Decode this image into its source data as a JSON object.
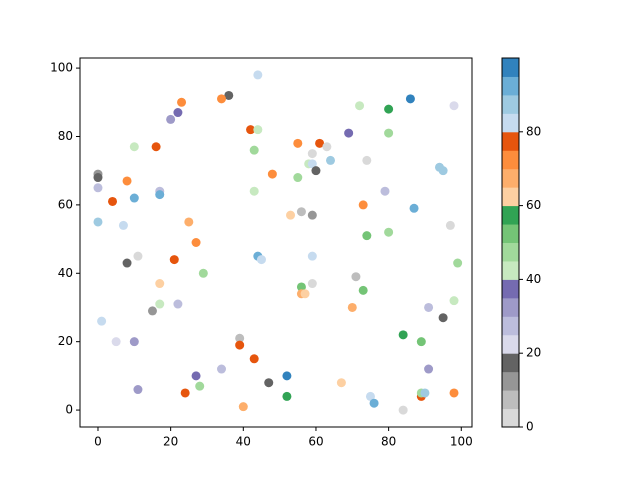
{
  "chart_data": {
    "type": "scatter",
    "x": [
      44,
      36,
      34,
      23,
      22,
      20,
      86,
      98,
      72,
      80,
      42,
      44,
      69,
      80,
      10,
      16,
      43,
      55,
      61,
      63,
      59,
      74,
      64,
      58,
      59,
      60,
      55,
      48,
      8,
      0,
      0,
      0,
      17,
      17,
      43,
      79,
      4,
      73,
      87,
      53,
      56,
      59,
      0,
      7,
      25,
      95,
      94,
      97,
      74,
      80,
      27,
      11,
      10,
      21,
      8,
      44,
      45,
      59,
      99,
      29,
      71,
      17,
      59,
      56,
      73,
      56,
      57,
      98,
      17,
      22,
      15,
      70,
      91,
      1,
      95,
      84,
      39,
      5,
      10,
      39,
      89,
      43,
      91,
      34,
      27,
      52,
      47,
      67,
      11,
      28,
      24,
      52,
      75,
      76,
      89,
      89,
      90,
      98,
      40,
      84
    ],
    "y": [
      98,
      92,
      91,
      90,
      87,
      85,
      91,
      89,
      89,
      88,
      82,
      82,
      81,
      81,
      77,
      77,
      76,
      78,
      78,
      77,
      75,
      73,
      73,
      72,
      72,
      70,
      68,
      69,
      67,
      69,
      68,
      65,
      64,
      63,
      64,
      64,
      61,
      60,
      59,
      57,
      58,
      57,
      55,
      54,
      55,
      70,
      71,
      54,
      51,
      52,
      49,
      45,
      62,
      44,
      43,
      45,
      44,
      45,
      43,
      40,
      39,
      37,
      37,
      36,
      35,
      34,
      34,
      32,
      31,
      31,
      29,
      30,
      30,
      26,
      27,
      22,
      21,
      20,
      20,
      19,
      20,
      15,
      12,
      12,
      10,
      10,
      8,
      8,
      6,
      7,
      5,
      4,
      4,
      2,
      4,
      5,
      5,
      5,
      1,
      0
    ],
    "c": [
      82,
      17,
      72,
      72,
      37,
      32,
      97,
      22,
      42,
      57,
      77,
      42,
      37,
      47,
      42,
      77,
      47,
      72,
      77,
      2,
      2,
      2,
      87,
      42,
      82,
      17,
      47,
      72,
      72,
      12,
      17,
      27,
      27,
      92,
      42,
      27,
      77,
      72,
      92,
      62,
      7,
      12,
      87,
      82,
      67,
      87,
      87,
      2,
      52,
      47,
      72,
      2,
      92,
      77,
      17,
      92,
      82,
      82,
      47,
      47,
      7,
      62,
      2,
      52,
      52,
      67,
      62,
      42,
      42,
      27,
      12,
      67,
      27,
      82,
      17,
      57,
      7,
      22,
      32,
      77,
      52,
      77,
      32,
      27,
      37,
      97,
      17,
      62,
      32,
      47,
      77,
      57,
      82,
      92,
      77,
      47,
      87,
      72,
      67,
      2
    ],
    "colormap": [
      "#d9d9d9",
      "#bdbdbd",
      "#969696",
      "#636363",
      "#dadaeb",
      "#bcbddc",
      "#9e9ac8",
      "#756bb1",
      "#c7e9c0",
      "#a1d99b",
      "#74c476",
      "#31a354",
      "#fdd0a2",
      "#fdae6b",
      "#fd8d3c",
      "#e6550d",
      "#c6dbef",
      "#9ecae1",
      "#6baed6",
      "#3182bd"
    ],
    "clim": [
      0,
      100
    ],
    "cticks": [
      0,
      20,
      40,
      60,
      80
    ],
    "xlim": [
      -4.95,
      102.95
    ],
    "xticks": [
      0,
      20,
      40,
      60,
      80,
      100
    ],
    "ylim": [
      -4.95,
      102.95
    ],
    "yticks": [
      0,
      20,
      40,
      60,
      80,
      100
    ]
  }
}
